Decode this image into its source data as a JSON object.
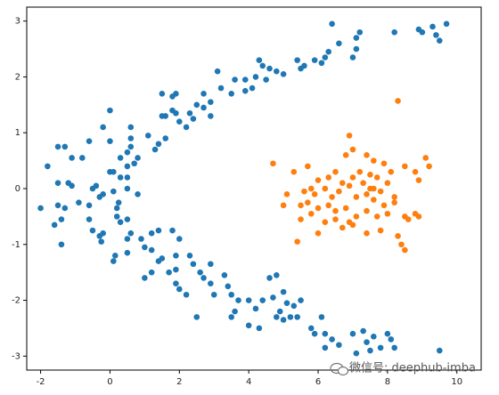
{
  "chart_data": {
    "type": "scatter",
    "xlim": [
      -2.4,
      10.7
    ],
    "ylim": [
      -3.25,
      3.25
    ],
    "xticks": [
      -2,
      0,
      2,
      4,
      6,
      8,
      10
    ],
    "yticks": [
      -3,
      -2,
      -1,
      0,
      1,
      2,
      3
    ],
    "watermark": "微信号: deephub-imba",
    "series": [
      {
        "color": "#1f77b4",
        "x": [
          9.7,
          9.3,
          9.0,
          8.9,
          9.4,
          9.5,
          8.2,
          7.2,
          7.1,
          6.6,
          6.4,
          7.1,
          7.0,
          6.3,
          6.2,
          6.1,
          5.9,
          5.6,
          5.5,
          5.4,
          5.0,
          4.8,
          4.6,
          4.4,
          4.3,
          4.2,
          4.5,
          4.1,
          3.9,
          3.6,
          3.9,
          3.5,
          3.2,
          3.1,
          2.9,
          2.7,
          2.5,
          2.3,
          2.4,
          2.2,
          1.9,
          1.8,
          1.6,
          1.5,
          1.5,
          1.8,
          1.9,
          2.7,
          2.9,
          2.0,
          1.6,
          1.4,
          1.3,
          1.1,
          0.6,
          0.6,
          0.6,
          0.5,
          0.8,
          0.7,
          0.5,
          0.3,
          0.0,
          -0.2,
          -0.6,
          0.0,
          -1.3,
          -1.5,
          -1.1,
          -0.8,
          -1.8,
          -1.5,
          -1.2,
          -1.1,
          -0.5,
          -0.4,
          0.0,
          0.1,
          0.3,
          0.5,
          0.5,
          0.8,
          -2.0,
          -1.5,
          -1.6,
          -1.4,
          -1.3,
          -0.9,
          -0.6,
          -0.3,
          -0.2,
          0.1,
          0.2,
          0.25,
          0.2,
          0.3,
          0.5,
          0.6,
          0.5,
          -0.5,
          -0.3,
          -0.25,
          -0.2,
          -0.6,
          -1.4,
          0.1,
          0.15,
          0.5,
          0.9,
          1.2,
          1.4,
          1.2,
          1.0,
          1.5,
          1.4,
          1.9,
          1.8,
          2.0,
          2.3,
          2.4,
          1.9,
          1.7,
          1.2,
          1.0,
          2.6,
          2.9,
          2.7,
          2.9,
          3.3,
          3.4,
          1.9,
          2.0,
          2.2,
          3.0,
          3.5,
          3.7,
          4.0,
          3.6,
          4.2,
          4.4,
          4.6,
          4.8,
          4.7,
          5.0,
          5.1,
          5.3,
          5.2,
          5.5,
          5.4,
          4.9,
          4.8,
          5.0,
          3.5,
          4.0,
          4.3,
          2.5,
          5.8,
          5.9,
          6.2,
          6.1,
          6.4,
          6.2,
          6.6,
          7.0,
          7.3,
          7.1,
          7.4,
          7.6,
          8.0,
          8.1,
          7.8,
          7.5,
          8.2,
          9.5
        ],
        "values": [
          2.95,
          2.9,
          2.8,
          2.85,
          2.75,
          2.65,
          2.8,
          2.8,
          2.7,
          2.6,
          2.95,
          2.5,
          2.35,
          2.45,
          2.35,
          2.25,
          2.3,
          2.2,
          2.15,
          2.3,
          2.05,
          2.1,
          2.15,
          2.2,
          2.3,
          2.0,
          1.95,
          1.8,
          1.95,
          1.95,
          1.75,
          1.7,
          1.8,
          2.1,
          1.55,
          1.45,
          1.5,
          1.35,
          1.25,
          1.1,
          1.35,
          1.4,
          1.3,
          1.3,
          1.7,
          1.65,
          1.7,
          1.7,
          1.3,
          1.2,
          0.9,
          0.8,
          0.7,
          0.95,
          1.1,
          0.9,
          0.75,
          0.65,
          0.55,
          0.45,
          0.4,
          0.55,
          0.85,
          1.1,
          0.85,
          1.4,
          0.75,
          0.75,
          0.55,
          0.55,
          0.4,
          0.1,
          0.1,
          0.05,
          0.0,
          0.05,
          0.3,
          0.3,
          0.2,
          0.2,
          0.0,
          -0.1,
          -0.35,
          -0.3,
          -0.65,
          -0.55,
          -0.35,
          -0.25,
          -0.3,
          -0.15,
          -0.1,
          -0.05,
          -0.35,
          -0.25,
          -0.5,
          -0.6,
          -0.55,
          -0.8,
          -0.9,
          -0.75,
          -0.85,
          -0.95,
          -0.8,
          -0.55,
          -1.0,
          -1.3,
          -1.2,
          -1.15,
          -0.9,
          -0.8,
          -0.75,
          -1.1,
          -1.05,
          -1.25,
          -1.3,
          -1.2,
          -0.75,
          -0.9,
          -1.2,
          -1.35,
          -1.45,
          -1.5,
          -1.5,
          -1.6,
          -1.5,
          -1.35,
          -1.6,
          -1.7,
          -1.55,
          -1.75,
          -1.7,
          -1.8,
          -1.9,
          -1.9,
          -1.9,
          -2.0,
          -2.0,
          -2.2,
          -2.15,
          -2.0,
          -1.6,
          -1.55,
          -1.95,
          -1.85,
          -2.05,
          -2.1,
          -2.3,
          -2.0,
          -2.3,
          -2.2,
          -2.3,
          -2.35,
          -2.3,
          -2.45,
          -2.5,
          -2.3,
          -2.5,
          -2.6,
          -2.6,
          -2.3,
          -2.7,
          -2.85,
          -2.8,
          -2.6,
          -2.55,
          -2.95,
          -2.75,
          -2.65,
          -2.6,
          -2.7,
          -2.85,
          -2.9,
          -2.85,
          -2.9
        ]
      },
      {
        "color": "#ff7f0e",
        "x": [
          4.7,
          5.3,
          5.7,
          6.0,
          6.3,
          6.5,
          6.8,
          7.0,
          6.9,
          7.4,
          7.6,
          7.9,
          8.1,
          8.3,
          8.5,
          8.8,
          9.1,
          9.2,
          8.9,
          7.2,
          7.5,
          7.7,
          7.3,
          7.0,
          6.7,
          6.6,
          6.2,
          5.9,
          5.6,
          5.5,
          5.1,
          5.0,
          5.7,
          6.0,
          6.3,
          6.5,
          6.8,
          7.1,
          7.4,
          7.6,
          7.8,
          7.9,
          8.2,
          8.0,
          7.7,
          7.4,
          7.1,
          6.9,
          6.7,
          7.0,
          6.5,
          6.2,
          5.8,
          5.5,
          5.4,
          6.0,
          7.4,
          7.8,
          8.3,
          8.5,
          8.6,
          8.8,
          8.9,
          8.4,
          8.5,
          8.2,
          7.5,
          6.9,
          8.0,
          7.6,
          6.4,
          5.8
        ],
        "values": [
          0.45,
          0.3,
          0.4,
          0.15,
          0.2,
          0.3,
          0.6,
          0.7,
          0.95,
          0.6,
          0.5,
          0.45,
          0.3,
          1.57,
          0.4,
          0.3,
          0.55,
          0.4,
          0.15,
          0.3,
          0.25,
          0.2,
          0.1,
          0.2,
          0.1,
          -0.05,
          0.0,
          -0.1,
          -0.05,
          -0.3,
          -0.1,
          -0.3,
          -0.25,
          -0.35,
          -0.3,
          -0.4,
          -0.35,
          -0.15,
          -0.1,
          -0.2,
          -0.05,
          -0.3,
          -0.15,
          -0.45,
          -0.5,
          -0.4,
          -0.5,
          -0.6,
          -0.7,
          -0.65,
          -0.55,
          -0.6,
          -0.45,
          -0.55,
          -0.95,
          -0.8,
          -0.8,
          -0.75,
          -0.85,
          -0.5,
          -0.55,
          -0.45,
          -0.5,
          -1.0,
          -1.1,
          -0.25,
          0.0,
          0.05,
          0.1,
          0.0,
          -0.15,
          0.0
        ]
      }
    ]
  }
}
